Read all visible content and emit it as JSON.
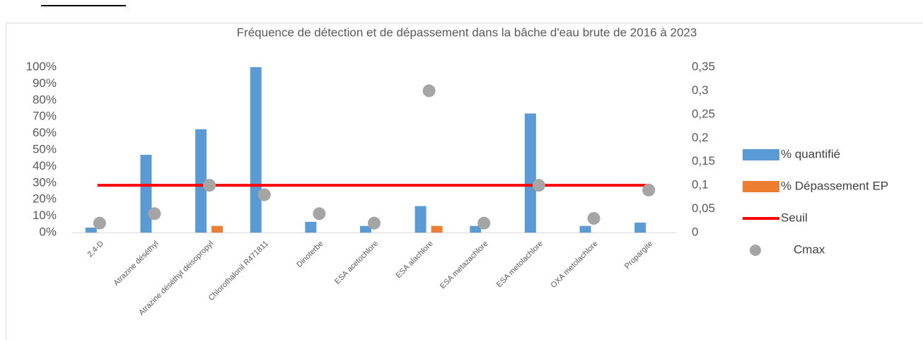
{
  "chart_data": {
    "type": "bar",
    "title": "Fréquence de détection et de dépassement dans la bâche d'eau brute de 2016 à 2023",
    "categories": [
      "2,4-D",
      "Atrazine déséthyl",
      "Atrazine déséthyl déisopropyl",
      "Chlorothalonil R471811",
      "Dinoterbe",
      "ESA acetochlore",
      "ESA alachlore",
      "ESA metazachlore",
      "ESA metolachlore",
      "OXA metolachlore",
      "Propargite"
    ],
    "series": [
      {
        "name": "% quantifié",
        "type": "bar",
        "axis": "y",
        "color": "#5b9bd5",
        "values": [
          3,
          47,
          62.5,
          100,
          6.5,
          4,
          16,
          4,
          72,
          4,
          6
        ]
      },
      {
        "name": "% Dépassement EP",
        "type": "bar",
        "axis": "y",
        "color": "#ed7d31",
        "values": [
          0,
          0,
          4,
          0,
          0,
          0,
          4,
          0,
          0,
          0,
          0
        ]
      },
      {
        "name": "Seuil",
        "type": "line",
        "axis": "y2",
        "color": "#ff0000",
        "values": [
          0.1,
          0.1,
          0.1,
          0.1,
          0.1,
          0.1,
          0.1,
          0.1,
          0.1,
          0.1,
          0.1
        ]
      },
      {
        "name": "Cmax",
        "type": "scatter",
        "axis": "y2",
        "color": "#a5a5a5",
        "values": [
          0.02,
          0.04,
          0.1,
          0.08,
          0.04,
          0.02,
          0.3,
          0.02,
          0.1,
          0.03,
          0.09
        ]
      }
    ],
    "ylim": [
      0,
      100
    ],
    "yticks": [
      {
        "value": 0,
        "label": "0%"
      },
      {
        "value": 10,
        "label": "10%"
      },
      {
        "value": 20,
        "label": "20%"
      },
      {
        "value": 30,
        "label": "30%"
      },
      {
        "value": 40,
        "label": "40%"
      },
      {
        "value": 50,
        "label": "50%"
      },
      {
        "value": 60,
        "label": "60%"
      },
      {
        "value": 70,
        "label": "70%"
      },
      {
        "value": 80,
        "label": "80%"
      },
      {
        "value": 90,
        "label": "90%"
      },
      {
        "value": 100,
        "label": "100%"
      }
    ],
    "y2lim": [
      0,
      0.35
    ],
    "y2ticks": [
      0,
      {
        "value": 0.05,
        "label": "0,05"
      },
      {
        "value": 0.1,
        "label": "0,1"
      },
      {
        "value": 0.15,
        "label": "0,15"
      },
      {
        "value": 0.2,
        "label": "0,2"
      },
      {
        "value": 0.25,
        "label": "0,25"
      },
      {
        "value": 0.3,
        "label": "0,3"
      },
      {
        "value": 0.35,
        "label": "0,35"
      }
    ],
    "legend": "right",
    "grid": false
  }
}
